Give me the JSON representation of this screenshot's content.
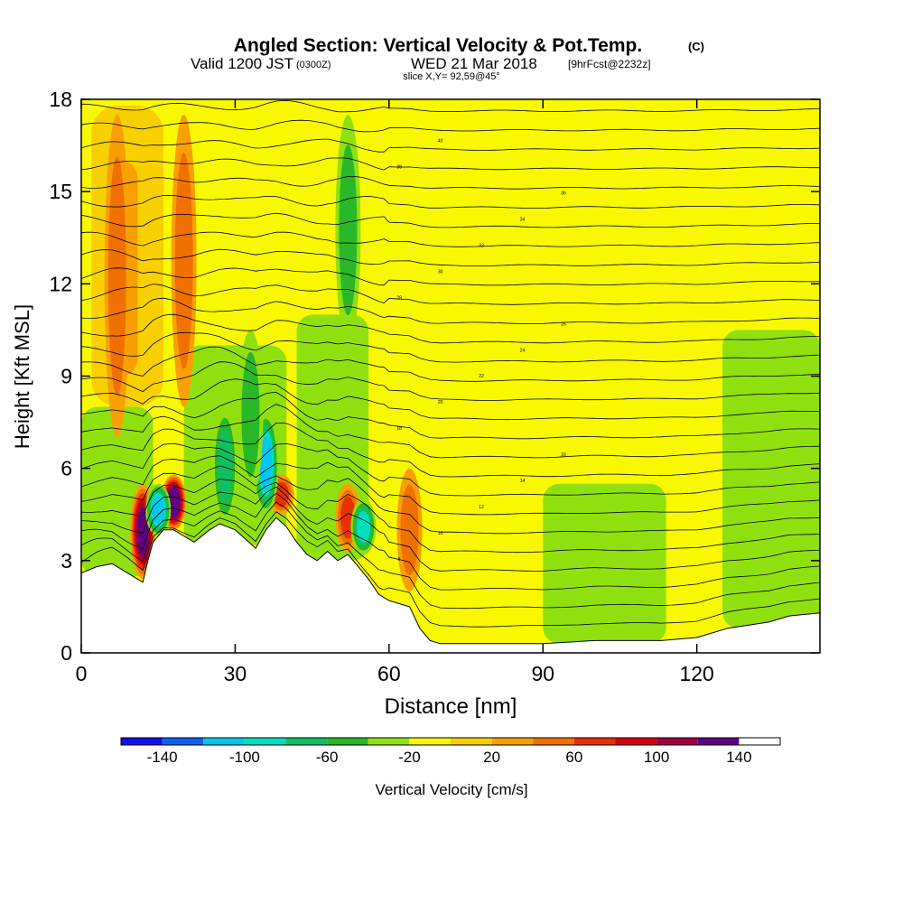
{
  "chart_data": {
    "type": "heatmap",
    "title_main": "Angled Section: Vertical Velocity & Pot.Temp.",
    "title_unit": "(C)",
    "subtitle_prefix": "Valid 1200 JST",
    "subtitle_zulu": "(0300Z)",
    "subtitle_date": "WED 21 Mar 2018",
    "subtitle_fcst": "[9hrFcst@2232z]",
    "slice_label": "slice X,Y= 92,59@45°",
    "xlabel": "Distance [nm]",
    "ylabel": "Height [Kft MSL]",
    "xlim": [
      0,
      144
    ],
    "ylim": [
      0,
      18
    ],
    "x_ticks": [
      "0",
      "30",
      "60",
      "90",
      "120"
    ],
    "y_ticks": [
      "0",
      "3",
      "6",
      "9",
      "12",
      "15",
      "18"
    ],
    "x_tick_values": [
      0,
      30,
      60,
      90,
      120
    ],
    "y_tick_values": [
      0,
      3,
      6,
      9,
      12,
      15,
      18
    ],
    "colorbar_label": "Vertical Velocity [cm/s]",
    "colorbar_tick_labels": [
      "-140",
      "-100",
      "-60",
      "-20",
      "20",
      "60",
      "100",
      "140"
    ],
    "colorbar_tick_values": [
      -140,
      -100,
      -60,
      -20,
      20,
      60,
      100,
      140
    ],
    "colorbar_levels": [
      -160,
      -140,
      -120,
      -100,
      -80,
      -60,
      -40,
      -20,
      0,
      20,
      40,
      60,
      80,
      100,
      120,
      140,
      160
    ],
    "colorbar_colors": [
      "#1010e8",
      "#1060f0",
      "#00c8f0",
      "#00e0c0",
      "#10c060",
      "#28b828",
      "#90e010",
      "#f8f800",
      "#f8d000",
      "#f8a000",
      "#f07000",
      "#e83000",
      "#d80010",
      "#a00040",
      "#600080"
    ],
    "terrain": {
      "x": [
        0,
        3,
        6,
        10,
        12,
        13,
        14,
        16,
        18,
        20,
        22,
        25,
        27,
        30,
        32,
        34,
        36,
        38,
        40,
        42,
        44,
        46,
        48,
        50,
        52,
        54,
        56,
        58,
        60,
        62,
        64,
        66,
        68,
        70,
        80,
        90,
        100,
        108,
        113,
        120,
        126,
        130,
        134,
        138,
        144
      ],
      "height": [
        2.6,
        2.8,
        2.9,
        2.5,
        2.3,
        3.0,
        3.6,
        4.0,
        4.0,
        3.8,
        3.6,
        4.0,
        4.2,
        4.0,
        3.7,
        3.4,
        4.0,
        4.4,
        4.1,
        3.6,
        3.2,
        3.0,
        3.3,
        3.0,
        3.2,
        2.8,
        2.4,
        1.9,
        1.7,
        1.6,
        1.5,
        0.8,
        0.4,
        0.3,
        0.3,
        0.3,
        0.4,
        0.4,
        0.4,
        0.5,
        0.8,
        0.9,
        1.0,
        1.2,
        1.3
      ]
    },
    "theta_contours": {
      "levels_count": 28,
      "labels": [
        "8",
        "10",
        "12",
        "14",
        "16",
        "18",
        "20",
        "22",
        "24",
        "26",
        "28",
        "30",
        "32",
        "34",
        "36",
        "38",
        "40"
      ]
    },
    "updrafts": [
      {
        "x": 12,
        "z0": 2.4,
        "z1": 5.5,
        "w": 120
      },
      {
        "x": 18,
        "z0": 3.8,
        "z1": 5.8,
        "w": 140
      },
      {
        "x": 7,
        "z0": 7.0,
        "z1": 17.5,
        "w": 50
      },
      {
        "x": 20,
        "z0": 8.0,
        "z1": 17.5,
        "w": 45
      },
      {
        "x": 52,
        "z0": 3.3,
        "z1": 5.5,
        "w": 70
      },
      {
        "x": 39,
        "z0": 4.5,
        "z1": 5.8,
        "w": 60
      },
      {
        "x": 64,
        "z0": 2.0,
        "z1": 6.0,
        "w": 40
      }
    ],
    "downdrafts": [
      {
        "x": 15,
        "z0": 3.5,
        "z1": 5.5,
        "w": -110
      },
      {
        "x": 28,
        "z0": 4.0,
        "z1": 8.0,
        "w": -70
      },
      {
        "x": 36,
        "z0": 4.5,
        "z1": 7.8,
        "w": -100
      },
      {
        "x": 52,
        "z0": 10.0,
        "z1": 17.5,
        "w": -50
      },
      {
        "x": 55,
        "z0": 3.2,
        "z1": 5.0,
        "w": -90
      },
      {
        "x": 33,
        "z0": 5.0,
        "z1": 10.5,
        "w": -45
      }
    ]
  }
}
